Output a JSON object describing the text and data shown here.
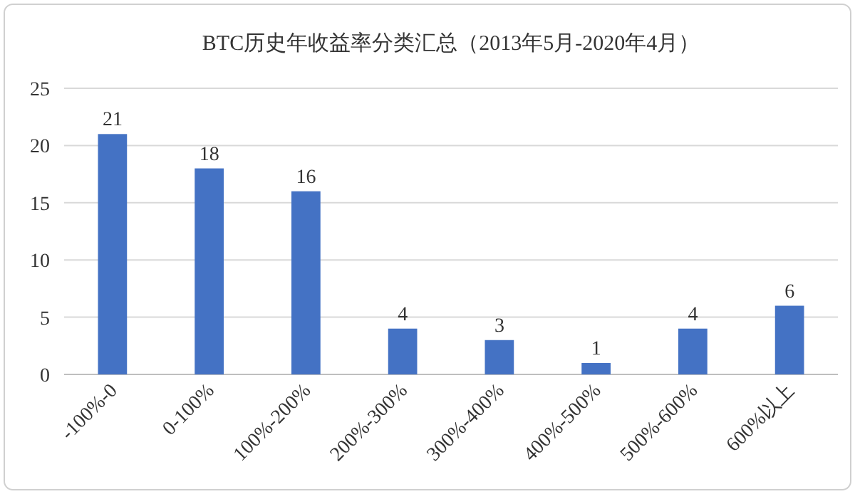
{
  "chart_data": {
    "type": "bar",
    "title": "BTC历史年收益率分类汇总（2013年5月-2020年4月）",
    "categories": [
      "-100%-0",
      "0-100%",
      "100%-200%",
      "200%-300%",
      "300%-400%",
      "400%-500%",
      "500%-600%",
      "600%以上"
    ],
    "values": [
      21,
      18,
      16,
      4,
      3,
      1,
      4,
      6
    ],
    "color": "#4472c4",
    "ylim": [
      0,
      25
    ],
    "yticks": [
      0,
      5,
      10,
      15,
      20,
      25
    ],
    "grid": "y",
    "data_labels": true
  }
}
